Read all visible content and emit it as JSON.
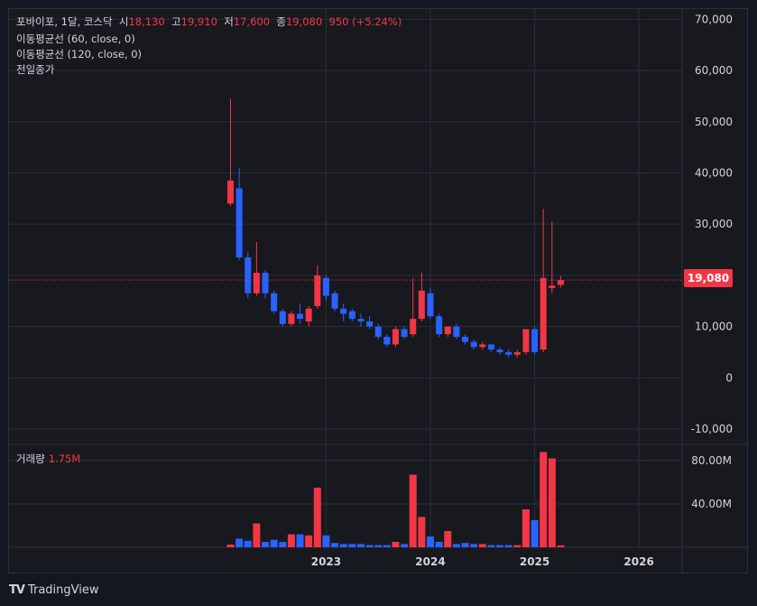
{
  "legend": {
    "symbol": "포바이포, 1달, 코스닥",
    "open_label": "시",
    "open": "18,130",
    "high_label": "고",
    "high": "19,910",
    "low_label": "저",
    "low": "17,600",
    "close_label": "종",
    "close": "19,080",
    "change": "950 (+5.24%)",
    "ma60": "이동평균선 (60, close, 0)",
    "ma120": "이동평균선 (120, close, 0)",
    "prev_close": "전일종가"
  },
  "volume_legend": {
    "label": "거래량",
    "value": "1.75M"
  },
  "last_price_tag": "19,080",
  "footer": {
    "logo_icon": "TV",
    "brand": "TradingView"
  },
  "colors": {
    "up": "#f23645",
    "down": "#2962ff",
    "background": "#18191f",
    "grid": "#2a2e39"
  },
  "chart_data": {
    "type": "candlestick",
    "price_axis": {
      "ticks": [
        "70,000",
        "60,000",
        "50,000",
        "40,000",
        "30,000",
        "20,000",
        "10,000",
        "0",
        "-10,000"
      ],
      "tick_values": [
        70000,
        60000,
        50000,
        40000,
        30000,
        20000,
        10000,
        0,
        -10000
      ],
      "range": [
        -13000,
        72000
      ]
    },
    "volume_axis": {
      "ticks": [
        "80.00M",
        "40.00M"
      ],
      "tick_values": [
        80,
        40
      ],
      "unit": "M",
      "range": [
        0,
        95
      ]
    },
    "time_axis": {
      "labels": [
        "2023",
        "2024",
        "2025",
        "2026"
      ],
      "label_positions": [
        12,
        24,
        36,
        48
      ]
    },
    "candles": [
      {
        "t": 1,
        "o": 34000,
        "h": 54500,
        "l": 33500,
        "c": 38500,
        "v": 2.5
      },
      {
        "t": 2,
        "o": 37000,
        "h": 41000,
        "l": 23000,
        "c": 23500,
        "v": 8
      },
      {
        "t": 3,
        "o": 23500,
        "h": 24500,
        "l": 15500,
        "c": 16500,
        "v": 6
      },
      {
        "t": 4,
        "o": 16500,
        "h": 26500,
        "l": 16000,
        "c": 20500,
        "v": 22
      },
      {
        "t": 5,
        "o": 20500,
        "h": 21000,
        "l": 15500,
        "c": 16500,
        "v": 5
      },
      {
        "t": 6,
        "o": 16500,
        "h": 17000,
        "l": 12500,
        "c": 13000,
        "v": 7
      },
      {
        "t": 7,
        "o": 13000,
        "h": 13500,
        "l": 10000,
        "c": 10500,
        "v": 5
      },
      {
        "t": 8,
        "o": 10500,
        "h": 13000,
        "l": 10000,
        "c": 12500,
        "v": 12
      },
      {
        "t": 9,
        "o": 12500,
        "h": 14500,
        "l": 10500,
        "c": 11500,
        "v": 12
      },
      {
        "t": 10,
        "o": 11000,
        "h": 14000,
        "l": 10000,
        "c": 13500,
        "v": 11
      },
      {
        "t": 11,
        "o": 14000,
        "h": 22000,
        "l": 13500,
        "c": 20000,
        "v": 55
      },
      {
        "t": 12,
        "o": 19500,
        "h": 20000,
        "l": 15000,
        "c": 16000,
        "v": 11
      },
      {
        "t": 13,
        "o": 16500,
        "h": 17000,
        "l": 13000,
        "c": 13500,
        "v": 4
      },
      {
        "t": 14,
        "o": 13500,
        "h": 14500,
        "l": 11000,
        "c": 12500,
        "v": 3
      },
      {
        "t": 15,
        "o": 13000,
        "h": 13500,
        "l": 11000,
        "c": 11500,
        "v": 3
      },
      {
        "t": 16,
        "o": 11500,
        "h": 12500,
        "l": 10000,
        "c": 11000,
        "v": 3
      },
      {
        "t": 17,
        "o": 11000,
        "h": 12000,
        "l": 9500,
        "c": 10000,
        "v": 2
      },
      {
        "t": 18,
        "o": 10000,
        "h": 10500,
        "l": 7500,
        "c": 8000,
        "v": 2
      },
      {
        "t": 19,
        "o": 8000,
        "h": 8500,
        "l": 6000,
        "c": 6500,
        "v": 2
      },
      {
        "t": 20,
        "o": 6500,
        "h": 10000,
        "l": 6000,
        "c": 9500,
        "v": 5
      },
      {
        "t": 21,
        "o": 9500,
        "h": 10000,
        "l": 7500,
        "c": 8000,
        "v": 3
      },
      {
        "t": 22,
        "o": 8500,
        "h": 19500,
        "l": 8000,
        "c": 11500,
        "v": 67
      },
      {
        "t": 23,
        "o": 11500,
        "h": 20500,
        "l": 11000,
        "c": 17000,
        "v": 28
      },
      {
        "t": 24,
        "o": 16500,
        "h": 17500,
        "l": 11500,
        "c": 12000,
        "v": 10
      },
      {
        "t": 25,
        "o": 12000,
        "h": 12500,
        "l": 8000,
        "c": 8500,
        "v": 5
      },
      {
        "t": 26,
        "o": 8500,
        "h": 10000,
        "l": 8000,
        "c": 10000,
        "v": 15
      },
      {
        "t": 27,
        "o": 10000,
        "h": 10500,
        "l": 7500,
        "c": 8000,
        "v": 3
      },
      {
        "t": 28,
        "o": 8000,
        "h": 8500,
        "l": 6500,
        "c": 7000,
        "v": 4
      },
      {
        "t": 29,
        "o": 7000,
        "h": 7500,
        "l": 5500,
        "c": 6000,
        "v": 3
      },
      {
        "t": 30,
        "o": 6000,
        "h": 7000,
        "l": 5500,
        "c": 6500,
        "v": 3
      },
      {
        "t": 31,
        "o": 6500,
        "h": 6500,
        "l": 5000,
        "c": 5500,
        "v": 2
      },
      {
        "t": 32,
        "o": 5500,
        "h": 6000,
        "l": 4500,
        "c": 5000,
        "v": 2
      },
      {
        "t": 33,
        "o": 5000,
        "h": 5500,
        "l": 4000,
        "c": 4500,
        "v": 2
      },
      {
        "t": 34,
        "o": 4500,
        "h": 5500,
        "l": 4000,
        "c": 5000,
        "v": 2
      },
      {
        "t": 35,
        "o": 5000,
        "h": 9500,
        "l": 4500,
        "c": 9500,
        "v": 35
      },
      {
        "t": 36,
        "o": 9500,
        "h": 10000,
        "l": 4500,
        "c": 5000,
        "v": 25
      },
      {
        "t": 37,
        "o": 5500,
        "h": 33000,
        "l": 5000,
        "c": 19500,
        "v": 88
      },
      {
        "t": 38,
        "o": 17500,
        "h": 30500,
        "l": 16500,
        "c": 18000,
        "v": 82
      },
      {
        "t": 39,
        "o": 18130,
        "h": 19910,
        "l": 17600,
        "c": 19080,
        "v": 1.75
      }
    ]
  }
}
